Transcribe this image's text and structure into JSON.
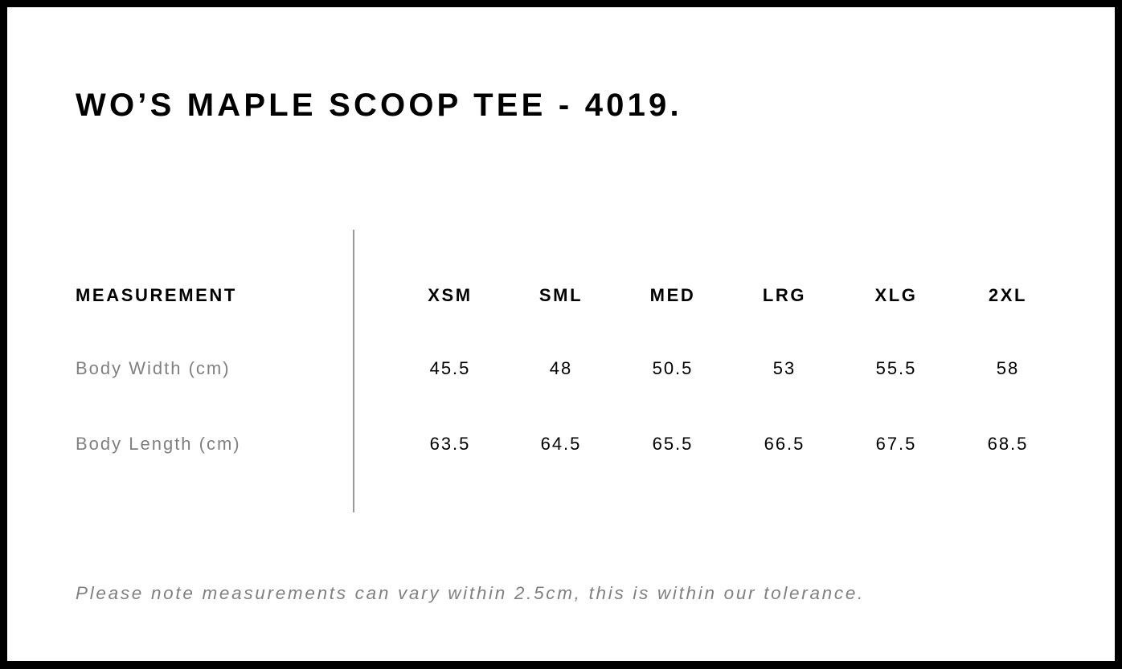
{
  "title": "WO’S MAPLE SCOOP TEE - 4019.",
  "table": {
    "header_label": "MEASUREMENT",
    "sizes": [
      "XSM",
      "SML",
      "MED",
      "LRG",
      "XLG",
      "2XL"
    ],
    "rows": [
      {
        "label": "Body Width (cm)",
        "values": [
          "45.5",
          "48",
          "50.5",
          "53",
          "55.5",
          "58"
        ]
      },
      {
        "label": "Body Length (cm)",
        "values": [
          "63.5",
          "64.5",
          "65.5",
          "66.5",
          "67.5",
          "68.5"
        ]
      }
    ]
  },
  "note": "Please note measurements can vary within 2.5cm, this is within our tolerance.",
  "colors": {
    "border": "#000000",
    "label_gray": "#808080",
    "divider": "#9a9a9a"
  }
}
